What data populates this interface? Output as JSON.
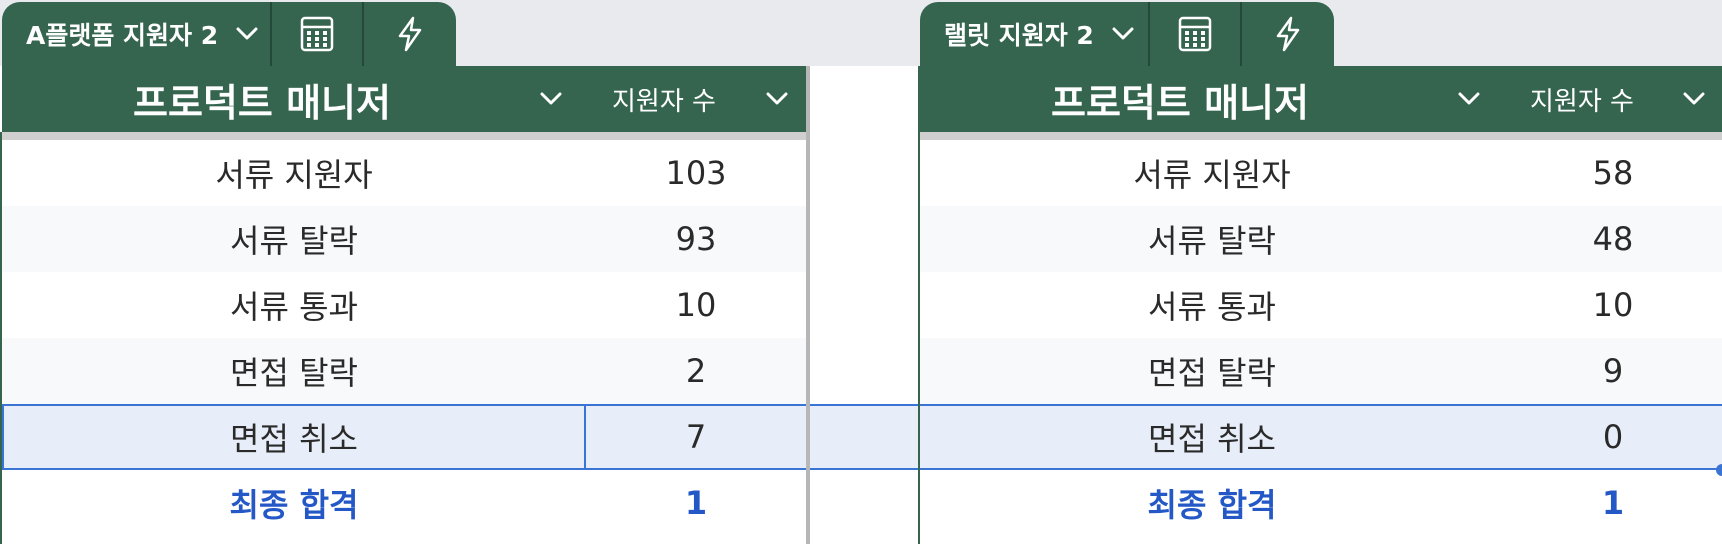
{
  "colors": {
    "header_bg": "#35654f",
    "accent_blue": "#2458c6",
    "selection": "#3a75d6"
  },
  "left_panel": {
    "tab": {
      "label": "A플랫폼 지원자 2",
      "icons": [
        "calculator-icon",
        "bolt-icon"
      ]
    },
    "header": {
      "title": "프로덕트 매니저",
      "column": "지원자 수"
    },
    "rows": [
      {
        "label": "서류 지원자",
        "value": "103"
      },
      {
        "label": "서류 탈락",
        "value": "93"
      },
      {
        "label": "서류 통과",
        "value": "10"
      },
      {
        "label": "면접 탈락",
        "value": "2"
      },
      {
        "label": "면접 취소",
        "value": "7"
      },
      {
        "label": "최종 합격",
        "value": "1"
      }
    ]
  },
  "right_panel": {
    "tab": {
      "label": "랠릿 지원자 2",
      "icons": [
        "calculator-icon",
        "bolt-icon"
      ]
    },
    "header": {
      "title": "프로덕트 매니저",
      "column": "지원자 수"
    },
    "rows": [
      {
        "label": "서류 지원자",
        "value": "58"
      },
      {
        "label": "서류 탈락",
        "value": "48"
      },
      {
        "label": "서류 통과",
        "value": "10"
      },
      {
        "label": "면접 탈락",
        "value": "9"
      },
      {
        "label": "면접 취소",
        "value": "0"
      },
      {
        "label": "최종 합격",
        "value": "1"
      }
    ]
  }
}
